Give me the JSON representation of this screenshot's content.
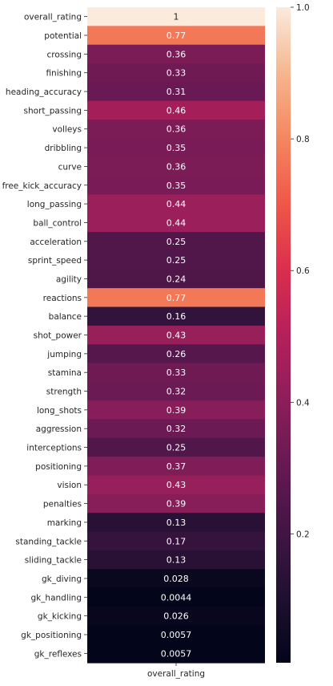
{
  "chart_data": {
    "type": "heatmap",
    "title": "",
    "xlabel": "",
    "ylabel": "",
    "columns": [
      "overall_rating"
    ],
    "rows": [
      "overall_rating",
      "potential",
      "crossing",
      "finishing",
      "heading_accuracy",
      "short_passing",
      "volleys",
      "dribbling",
      "curve",
      "free_kick_accuracy",
      "long_passing",
      "ball_control",
      "acceleration",
      "sprint_speed",
      "agility",
      "reactions",
      "balance",
      "shot_power",
      "jumping",
      "stamina",
      "strength",
      "long_shots",
      "aggression",
      "interceptions",
      "positioning",
      "vision",
      "penalties",
      "marking",
      "standing_tackle",
      "sliding_tackle",
      "gk_diving",
      "gk_handling",
      "gk_kicking",
      "gk_positioning",
      "gk_reflexes"
    ],
    "values": [
      1,
      0.77,
      0.36,
      0.33,
      0.31,
      0.46,
      0.36,
      0.35,
      0.36,
      0.35,
      0.44,
      0.44,
      0.25,
      0.25,
      0.24,
      0.77,
      0.16,
      0.43,
      0.26,
      0.33,
      0.32,
      0.39,
      0.32,
      0.25,
      0.37,
      0.43,
      0.39,
      0.13,
      0.17,
      0.13,
      0.028,
      0.0044,
      0.026,
      0.0057,
      0.0057
    ],
    "value_labels": [
      "1",
      "0.77",
      "0.36",
      "0.33",
      "0.31",
      "0.46",
      "0.36",
      "0.35",
      "0.36",
      "0.35",
      "0.44",
      "0.44",
      "0.25",
      "0.25",
      "0.24",
      "0.77",
      "0.16",
      "0.43",
      "0.26",
      "0.33",
      "0.32",
      "0.39",
      "0.32",
      "0.25",
      "0.37",
      "0.43",
      "0.39",
      "0.13",
      "0.17",
      "0.13",
      "0.028",
      "0.0044",
      "0.026",
      "0.0057",
      "0.0057"
    ],
    "colorbar": {
      "range": [
        0.0044,
        1.0
      ],
      "ticks": [
        0.2,
        0.4,
        0.6,
        0.8,
        1.0
      ],
      "tick_labels": [
        "0.2",
        "0.4",
        "0.6",
        "0.8",
        "1.0"
      ],
      "colormap": "rocket"
    },
    "grid": false,
    "legend": "colorbar-right"
  }
}
